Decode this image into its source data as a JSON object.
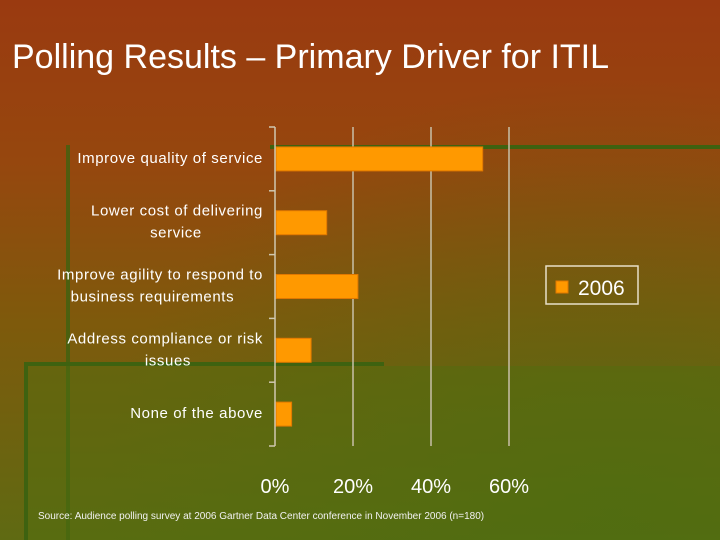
{
  "slide": {
    "title": "Polling Results – Primary Driver for ITIL",
    "source": "Source: Audience polling survey at 2006 Gartner Data Center conference in November 2006 (n=180)"
  },
  "colors": {
    "bar": "#ff9900",
    "bar_border": "#e07800",
    "text": "#ffffff",
    "axis": "#d0c8b0",
    "grid": "#c8c0a8",
    "accent_line": "#4a6e10"
  },
  "chart_data": {
    "type": "bar",
    "orientation": "horizontal",
    "categories": [
      [
        "Improve quality of service"
      ],
      [
        "Lower cost of delivering",
        "service"
      ],
      [
        "Improve agility to respond to",
        "business requirements"
      ],
      [
        "Address compliance or risk",
        "issues"
      ],
      [
        "None of the above"
      ]
    ],
    "series": [
      {
        "name": "2006",
        "values": [
          0.53,
          0.13,
          0.21,
          0.09,
          0.04
        ]
      }
    ],
    "xlim": [
      0,
      0.6
    ],
    "xticks": [
      0,
      0.2,
      0.4,
      0.6
    ],
    "xtick_labels": [
      "0%",
      "20%",
      "40%",
      "60%"
    ],
    "gridlines": "vertical",
    "legend": {
      "position": "right",
      "entries": [
        "2006"
      ]
    }
  }
}
